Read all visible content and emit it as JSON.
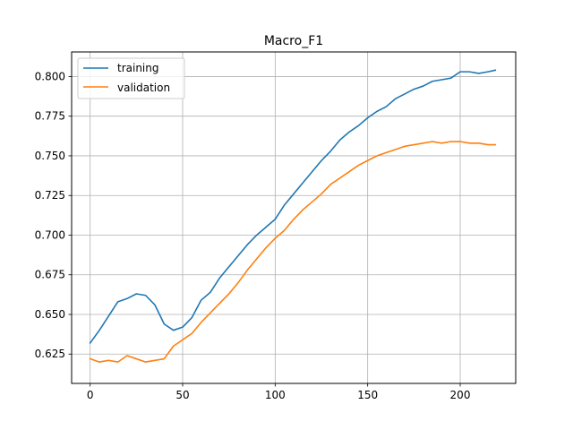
{
  "chart_data": {
    "type": "line",
    "title": "Macro_F1",
    "xlabel": "",
    "ylabel": "",
    "xlim": [
      -10,
      230
    ],
    "ylim": [
      0.6065,
      0.8155
    ],
    "xticks": [
      0,
      50,
      100,
      150,
      200
    ],
    "yticks": [
      0.625,
      0.65,
      0.675,
      0.7,
      0.725,
      0.75,
      0.775,
      0.8
    ],
    "grid": true,
    "legend_position": "upper-left",
    "series": [
      {
        "name": "training",
        "color": "#1f77b4",
        "x": [
          0,
          5,
          10,
          15,
          20,
          25,
          30,
          35,
          40,
          45,
          50,
          55,
          60,
          65,
          70,
          75,
          80,
          85,
          90,
          95,
          100,
          105,
          110,
          115,
          120,
          125,
          130,
          135,
          140,
          145,
          150,
          155,
          160,
          165,
          170,
          175,
          180,
          185,
          190,
          195,
          200,
          205,
          210,
          215,
          219
        ],
        "y": [
          0.632,
          0.64,
          0.649,
          0.658,
          0.66,
          0.663,
          0.662,
          0.656,
          0.644,
          0.64,
          0.642,
          0.648,
          0.659,
          0.664,
          0.673,
          0.68,
          0.687,
          0.694,
          0.7,
          0.705,
          0.71,
          0.719,
          0.726,
          0.733,
          0.74,
          0.747,
          0.753,
          0.76,
          0.765,
          0.769,
          0.774,
          0.778,
          0.781,
          0.786,
          0.789,
          0.792,
          0.794,
          0.797,
          0.798,
          0.799,
          0.803,
          0.803,
          0.802,
          0.803,
          0.804
        ]
      },
      {
        "name": "validation",
        "color": "#ff7f0e",
        "x": [
          0,
          5,
          10,
          15,
          20,
          25,
          30,
          35,
          40,
          45,
          50,
          55,
          60,
          65,
          70,
          75,
          80,
          85,
          90,
          95,
          100,
          105,
          110,
          115,
          120,
          125,
          130,
          135,
          140,
          145,
          150,
          155,
          160,
          165,
          170,
          175,
          180,
          185,
          190,
          195,
          200,
          205,
          210,
          215,
          219
        ],
        "y": [
          0.622,
          0.62,
          0.621,
          0.62,
          0.624,
          0.622,
          0.62,
          0.621,
          0.622,
          0.63,
          0.634,
          0.638,
          0.645,
          0.651,
          0.657,
          0.663,
          0.67,
          0.678,
          0.685,
          0.692,
          0.698,
          0.703,
          0.71,
          0.716,
          0.721,
          0.726,
          0.732,
          0.736,
          0.74,
          0.744,
          0.747,
          0.75,
          0.752,
          0.754,
          0.756,
          0.757,
          0.758,
          0.759,
          0.758,
          0.759,
          0.759,
          0.758,
          0.758,
          0.757,
          0.757
        ]
      }
    ]
  }
}
